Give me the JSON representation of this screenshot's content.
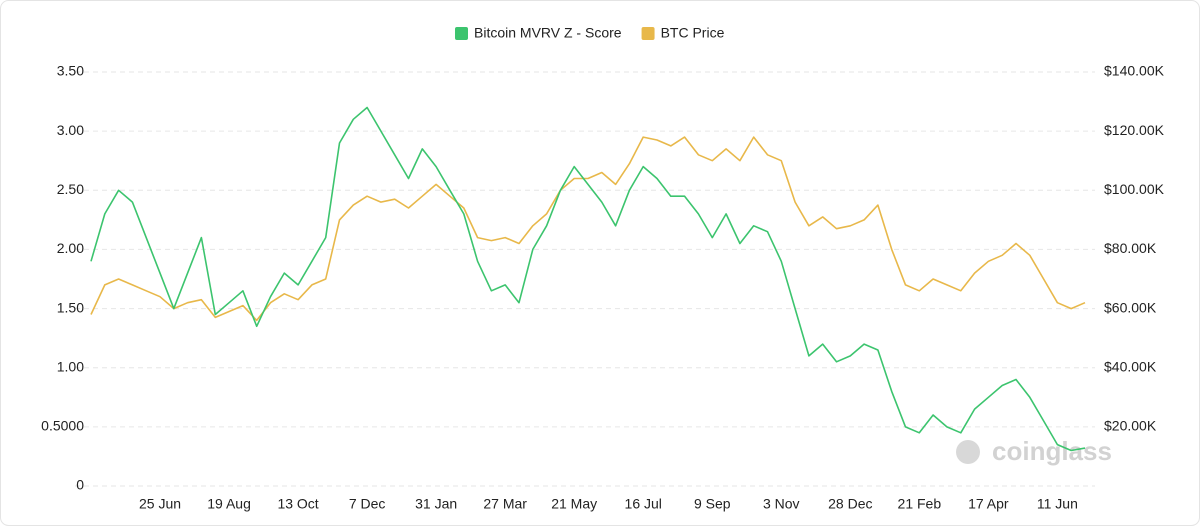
{
  "chart_data": {
    "type": "line",
    "watermark": "coinglass",
    "categories": [
      null,
      null,
      null,
      null,
      null,
      "25 Jun",
      null,
      null,
      null,
      null,
      "19 Aug",
      null,
      null,
      null,
      null,
      "13 Oct",
      null,
      null,
      null,
      null,
      "7 Dec",
      null,
      null,
      null,
      null,
      "31 Jan",
      null,
      null,
      null,
      null,
      "27 Mar",
      null,
      null,
      null,
      null,
      "21 May",
      null,
      null,
      null,
      null,
      "16 Jul",
      null,
      null,
      null,
      null,
      "9 Sep",
      null,
      null,
      null,
      null,
      "3 Nov",
      null,
      null,
      null,
      null,
      "28 Dec",
      null,
      null,
      null,
      null,
      "21 Feb",
      null,
      null,
      null,
      null,
      "17 Apr",
      null,
      null,
      null,
      null,
      "11 Jun",
      null,
      null
    ],
    "series": [
      {
        "name": "Bitcoin MVRV Z - Score",
        "color": "#3cc46e",
        "axis": "y",
        "values": [
          1.9,
          2.3,
          2.5,
          2.4,
          2.1,
          1.8,
          1.5,
          1.8,
          2.1,
          1.45,
          1.55,
          1.65,
          1.35,
          1.6,
          1.8,
          1.7,
          1.9,
          2.1,
          2.9,
          3.1,
          3.2,
          3.0,
          2.8,
          2.6,
          2.85,
          2.7,
          2.5,
          2.3,
          1.9,
          1.65,
          1.7,
          1.55,
          2.0,
          2.2,
          2.5,
          2.7,
          2.55,
          2.4,
          2.2,
          2.5,
          2.7,
          2.6,
          2.45,
          2.45,
          2.3,
          2.1,
          2.3,
          2.05,
          2.2,
          2.15,
          1.9,
          1.5,
          1.1,
          1.2,
          1.05,
          1.1,
          1.2,
          1.15,
          0.8,
          0.5,
          0.45,
          0.6,
          0.5,
          0.45,
          0.65,
          0.75,
          0.85,
          0.9,
          0.75,
          0.55,
          0.35,
          0.3,
          0.32
        ]
      },
      {
        "name": "BTC Price",
        "color": "#e8b84a",
        "axis": "y2",
        "values": [
          58000,
          68000,
          70000,
          68000,
          66000,
          64000,
          60000,
          62000,
          63000,
          57000,
          59000,
          61000,
          56000,
          62000,
          65000,
          63000,
          68000,
          70000,
          90000,
          95000,
          98000,
          96000,
          97000,
          94000,
          98000,
          102000,
          98000,
          94000,
          84000,
          83000,
          84000,
          82000,
          88000,
          92000,
          100000,
          104000,
          104000,
          106000,
          102000,
          109000,
          118000,
          117000,
          115000,
          118000,
          112000,
          110000,
          114000,
          110000,
          118000,
          112000,
          110000,
          96000,
          88000,
          91000,
          87000,
          88000,
          90000,
          95000,
          80000,
          68000,
          66000,
          70000,
          68000,
          66000,
          72000,
          76000,
          78000,
          82000,
          78000,
          70000,
          62000,
          60000,
          62000
        ]
      }
    ],
    "ylim": [
      0,
      3.5
    ],
    "yticks": [
      0,
      {
        "value": 0.5,
        "label": "0.5000"
      },
      {
        "value": 1,
        "label": "1.00"
      },
      {
        "value": 1.5,
        "label": "1.50"
      },
      {
        "value": 2,
        "label": "2.00"
      },
      {
        "value": 2.5,
        "label": "2.50"
      },
      {
        "value": 3,
        "label": "3.00"
      },
      {
        "value": 3.5,
        "label": "3.50"
      }
    ],
    "y2lim": [
      0,
      140000
    ],
    "y2ticks": [
      {
        "value": 20000,
        "label": "$20.00K"
      },
      {
        "value": 40000,
        "label": "$40.00K"
      },
      {
        "value": 60000,
        "label": "$60.00K"
      },
      {
        "value": 80000,
        "label": "$80.00K"
      },
      {
        "value": 100000,
        "label": "$100.00K"
      },
      {
        "value": 120000,
        "label": "$120.00K"
      },
      {
        "value": 140000,
        "label": "$140.00K"
      }
    ],
    "grid": true,
    "legend": "top"
  }
}
